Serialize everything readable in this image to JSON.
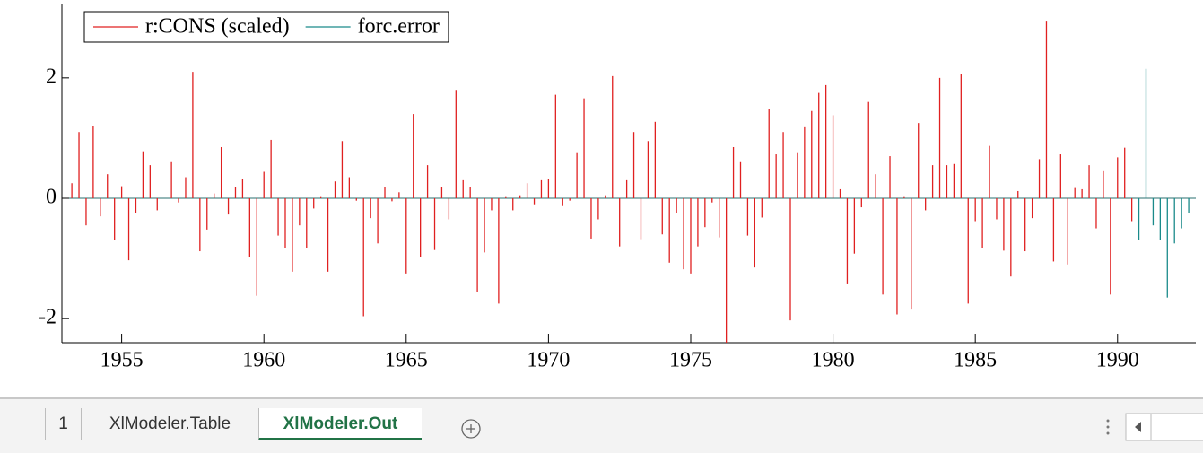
{
  "chart_data": {
    "type": "bar",
    "legend": "upper left",
    "xlim": [
      1952.9,
      1992.75
    ],
    "ylim": [
      -2.4,
      3.22
    ],
    "xticks": [
      1955,
      1960,
      1965,
      1970,
      1975,
      1980,
      1985,
      1990
    ],
    "yticks": [
      -2,
      0,
      2
    ],
    "series": [
      {
        "name": "r:CONS (scaled)",
        "color": "#e02020",
        "x": [
          1953.25,
          1953.5,
          1953.75,
          1954,
          1954.25,
          1954.5,
          1954.75,
          1955,
          1955.25,
          1955.5,
          1955.75,
          1956,
          1956.25,
          1956.5,
          1956.75,
          1957,
          1957.25,
          1957.5,
          1957.75,
          1958,
          1958.25,
          1958.5,
          1958.75,
          1959,
          1959.25,
          1959.5,
          1959.75,
          1960,
          1960.25,
          1960.5,
          1960.75,
          1961,
          1961.25,
          1961.5,
          1961.75,
          1962,
          1962.25,
          1962.5,
          1962.75,
          1963,
          1963.25,
          1963.5,
          1963.75,
          1964,
          1964.25,
          1964.5,
          1964.75,
          1965,
          1965.25,
          1965.5,
          1965.75,
          1966,
          1966.25,
          1966.5,
          1966.75,
          1967,
          1967.25,
          1967.5,
          1967.75,
          1968,
          1968.25,
          1968.5,
          1968.75,
          1969,
          1969.25,
          1969.5,
          1969.75,
          1970,
          1970.25,
          1970.5,
          1970.75,
          1971,
          1971.25,
          1971.5,
          1971.75,
          1972,
          1972.25,
          1972.5,
          1972.75,
          1973,
          1973.25,
          1973.5,
          1973.75,
          1974,
          1974.25,
          1974.5,
          1974.75,
          1975,
          1975.25,
          1975.5,
          1975.75,
          1976,
          1976.25,
          1976.5,
          1976.75,
          1977,
          1977.25,
          1977.5,
          1977.75,
          1978,
          1978.25,
          1978.5,
          1978.75,
          1979,
          1979.25,
          1979.5,
          1979.75,
          1980,
          1980.25,
          1980.5,
          1980.75,
          1981,
          1981.25,
          1981.5,
          1981.75,
          1982,
          1982.25,
          1982.5,
          1982.75,
          1983,
          1983.25,
          1983.5,
          1983.75,
          1984,
          1984.25,
          1984.5,
          1984.75,
          1985,
          1985.25,
          1985.5,
          1985.75,
          1986,
          1986.25,
          1986.5,
          1986.75,
          1987,
          1987.25,
          1987.5,
          1987.75,
          1988,
          1988.25,
          1988.5,
          1988.75,
          1989,
          1989.25,
          1989.5,
          1989.75,
          1990,
          1990.25,
          1990.5
        ],
        "values": [
          0.25,
          1.1,
          -0.45,
          1.2,
          -0.3,
          0.4,
          -0.7,
          0.2,
          -1.03,
          -0.25,
          0.78,
          0.55,
          -0.2,
          0,
          0.6,
          -0.07,
          0.35,
          2.1,
          -0.88,
          -0.52,
          0.08,
          0.85,
          -0.27,
          0.18,
          0.32,
          -0.97,
          -1.62,
          0.44,
          0.97,
          -0.62,
          -0.83,
          -1.22,
          -0.45,
          -0.83,
          -0.17,
          0.02,
          -1.22,
          0.28,
          0.95,
          0.35,
          -0.04,
          -1.96,
          -0.33,
          -0.75,
          0.18,
          -0.05,
          0.1,
          -1.25,
          1.4,
          -0.97,
          0.55,
          -0.86,
          0.18,
          -0.35,
          1.8,
          0.3,
          0.18,
          -1.55,
          -0.9,
          -0.2,
          -1.75,
          0.02,
          -0.2,
          0.05,
          0.25,
          -0.1,
          0.3,
          0.32,
          1.72,
          -0.13,
          -0.04,
          0.75,
          1.66,
          -0.67,
          -0.35,
          0.05,
          2.03,
          -0.8,
          0.3,
          1.1,
          -0.68,
          0.95,
          1.27,
          -0.6,
          -1.07,
          -0.25,
          -1.18,
          -1.25,
          -0.8,
          -0.48,
          -0.07,
          -0.65,
          -2.4,
          0.85,
          0.6,
          -0.62,
          -1.15,
          -0.32,
          1.49,
          0.73,
          1.1,
          -2.03,
          0.75,
          1.18,
          1.45,
          1.75,
          1.88,
          1.38,
          0.15,
          -1.43,
          -0.92,
          -0.15,
          1.6,
          0.4,
          -1.6,
          0.7,
          -1.93,
          0.02,
          -1.85,
          1.25,
          -0.2,
          0.55,
          2.0,
          0.55,
          0.57,
          2.06,
          -1.75,
          -0.38,
          -0.82,
          0.87,
          -0.35,
          -0.87,
          -1.3,
          0.12,
          -0.88,
          -0.33,
          0.65,
          2.95,
          -1.05,
          0.73,
          -1.1,
          0.17,
          0.15,
          0.55,
          -0.5,
          0.45,
          -1.6,
          0.68,
          0.84,
          -0.38
        ]
      },
      {
        "name": "forc.error",
        "color": "#1a8a8a",
        "x": [
          1990.75,
          1991,
          1991.25,
          1991.5,
          1991.75,
          1992,
          1992.25,
          1992.5
        ],
        "values": [
          -0.7,
          2.15,
          -0.45,
          -0.7,
          -1.65,
          -0.75,
          -0.5,
          -0.25
        ]
      }
    ]
  },
  "sheet_tabs": {
    "tabs": [
      "1",
      "XlModeler.Table",
      "XlModeler.Out"
    ],
    "active": 2
  }
}
